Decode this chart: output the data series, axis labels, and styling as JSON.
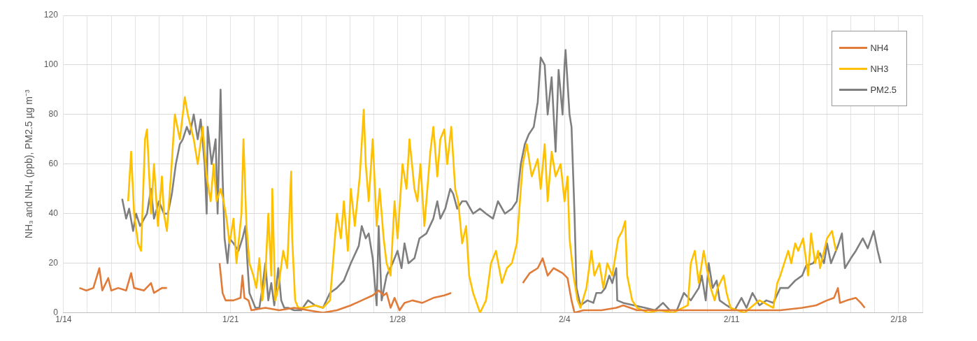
{
  "chart_data": {
    "type": "line",
    "ylabel": "NH₃ and NH₄ (ppb), PM2.5 µg m⁻³",
    "xlim": [
      "--01-14",
      "--02-19"
    ],
    "ylim": [
      0,
      120
    ],
    "xticks": [
      {
        "value": "--01-14",
        "label": "1/14"
      },
      {
        "value": "--01-15",
        "label": null
      },
      {
        "value": "--01-16",
        "label": null
      },
      {
        "value": "--01-17",
        "label": null
      },
      {
        "value": "--01-18",
        "label": null
      },
      {
        "value": "--01-19",
        "label": null
      },
      {
        "value": "--01-20",
        "label": null
      },
      {
        "value": "--01-21",
        "label": "1/21"
      },
      {
        "value": "--01-22",
        "label": null
      },
      {
        "value": "--01-23",
        "label": null
      },
      {
        "value": "--01-24",
        "label": null
      },
      {
        "value": "--01-25",
        "label": null
      },
      {
        "value": "--01-26",
        "label": null
      },
      {
        "value": "--01-27",
        "label": null
      },
      {
        "value": "--01-28",
        "label": "1/28"
      },
      {
        "value": "--01-29",
        "label": null
      },
      {
        "value": "--01-30",
        "label": null
      },
      {
        "value": "--01-31",
        "label": null
      },
      {
        "value": "--02-01",
        "label": null
      },
      {
        "value": "--02-02",
        "label": null
      },
      {
        "value": "--02-03",
        "label": null
      },
      {
        "value": "--02-04",
        "label": "2/4"
      },
      {
        "value": "--02-05",
        "label": null
      },
      {
        "value": "--02-06",
        "label": null
      },
      {
        "value": "--02-07",
        "label": null
      },
      {
        "value": "--02-08",
        "label": null
      },
      {
        "value": "--02-09",
        "label": null
      },
      {
        "value": "--02-10",
        "label": null
      },
      {
        "value": "--02-11",
        "label": "2/11"
      },
      {
        "value": "--02-12",
        "label": null
      },
      {
        "value": "--02-13",
        "label": null
      },
      {
        "value": "--02-14",
        "label": null
      },
      {
        "value": "--02-15",
        "label": null
      },
      {
        "value": "--02-16",
        "label": null
      },
      {
        "value": "--02-17",
        "label": null
      },
      {
        "value": "--02-18",
        "label": "2/18"
      },
      {
        "value": "--02-19",
        "label": null
      }
    ],
    "yticks": [
      0,
      20,
      40,
      60,
      80,
      100,
      120
    ],
    "grid": true,
    "legend": "top right",
    "series": [
      {
        "name": "NH4",
        "color": "#e07b39",
        "x": [
          "--01-14T16:00",
          "--01-14T23:00",
          "--01-15T06:00",
          "--01-15T12:00",
          "--01-15T15:00",
          "--01-15T21:00",
          "--01-16T00:00",
          "--01-16T07:00",
          "--01-16T15:00",
          "--01-16T20:00",
          "--01-16T23:00",
          "--01-17T09:00",
          "--01-17T16:00",
          "--01-17T19:00",
          "--01-18T03:00",
          "--01-18T08:00",
          "--01-19T10:00",
          "--01-20T13:00",
          "--01-20T16:00",
          "--01-20T19:00",
          "--01-21T03:00",
          "--01-21T10:00",
          "--01-21T12:00",
          "--01-21T14:00",
          "--01-21T18:00",
          "--01-21T21:00",
          "--01-22T11:00",
          "--01-23T01:00",
          "--01-23T16:00",
          "--01-24T06:00",
          "--01-24T21:00",
          "--01-25T11:00",
          "--01-26T01:00",
          "--01-26T12:00",
          "--01-26T23:00",
          "--01-27T05:00",
          "--01-27T10:00",
          "--01-27T13:00",
          "--01-27T17:00",
          "--01-27T21:00",
          "--01-28T02:00",
          "--01-28T07:00",
          "--01-28T15:00",
          "--01-29T01:00",
          "--01-29T12:00",
          "--01-29T23:00",
          "--01-30T06:00",
          "--01-31T19:00",
          "--02-02T06:00",
          "--02-02T13:00",
          "--02-02T21:00",
          "--02-03T02:00",
          "--02-03T07:00",
          "--02-03T13:00",
          "--02-03T22:00",
          "--02-04T03:00",
          "--02-04T07:00",
          "--02-04T10:00",
          "--02-04T19:00",
          "--02-05T13:00",
          "--02-06T04:00",
          "--02-06T11:00",
          "--02-06T18:00",
          "--02-07T01:00",
          "--02-08T06:00",
          "--02-09T11:00",
          "--02-10T16:00",
          "--02-11T21:00",
          "--02-13T01:00",
          "--02-13T23:00",
          "--02-14T13:00",
          "--02-15T00:00",
          "--02-15T07:00",
          "--02-15T11:00",
          "--02-15T13:00",
          "--02-15T20:00",
          "--02-16T05:00",
          "--02-16T10:00",
          "--02-16T14:00"
        ],
        "values": [
          10,
          9,
          10,
          18,
          9,
          14,
          9,
          10,
          9,
          16,
          10,
          9,
          12,
          8,
          10,
          10,
          null,
          20,
          8,
          5,
          5,
          6,
          15,
          6,
          5,
          1,
          2,
          1,
          2,
          1,
          0,
          1,
          3,
          5,
          7,
          9,
          7,
          8,
          2,
          6,
          1,
          4,
          5,
          4,
          6,
          7,
          8,
          null,
          12,
          16,
          18,
          22,
          15,
          18,
          16,
          14,
          5,
          0,
          1,
          1,
          2,
          3,
          2,
          1,
          1,
          1,
          1,
          1,
          1,
          2,
          3,
          5,
          6,
          10,
          4,
          5,
          6,
          4,
          2
        ]
      },
      {
        "name": "NH3",
        "color": "#ffc000",
        "x": [
          "--01-16T17:00",
          "--01-16T20:00",
          "--01-16T23:00",
          "--01-17T03:00",
          "--01-17T06:00",
          "--01-17T10:00",
          "--01-17T12:00",
          "--01-17T16:00",
          "--01-17T19:00",
          "--01-17T23:00",
          "--01-18T03:00",
          "--01-18T05:00",
          "--01-18T08:00",
          "--01-18T12:00",
          "--01-18T16:00",
          "--01-18T21:00",
          "--01-19T02:00",
          "--01-19T05:00",
          "--01-19T11:00",
          "--01-19T15:00",
          "--01-19T20:00",
          "--01-20T00:00",
          "--01-20T04:00",
          "--01-20T07:00",
          "--01-20T10:00",
          "--01-20T14:00",
          "--01-20T17:00",
          "--01-20T20:00",
          "--01-20T23:00",
          "--01-21T03:00",
          "--01-21T06:00",
          "--01-21T11:00",
          "--01-21T13:00",
          "--01-21T16:00",
          "--01-21T19:00",
          "--01-21T23:00",
          "--01-22T02:00",
          "--01-22T05:00",
          "--01-22T08:00",
          "--01-22T11:00",
          "--01-22T14:00",
          "--01-22T17:00",
          "--01-22T18:00",
          "--01-22T21:00",
          "--01-23T00:00",
          "--01-23T05:00",
          "--01-23T09:00",
          "--01-23T13:00",
          "--01-23T14:00",
          "--01-23T17:00",
          "--01-23T20:00",
          "--01-24T03:00",
          "--01-24T13:00",
          "--01-24T21:00",
          "--01-25T04:00",
          "--01-25T07:00",
          "--01-25T11:00",
          "--01-25T15:00",
          "--01-25T18:00",
          "--01-25T22:00",
          "--01-26T01:00",
          "--01-26T05:00",
          "--01-26T10:00",
          "--01-26T14:00",
          "--01-26T16:00",
          "--01-26T19:00",
          "--01-26T23:00",
          "--01-27T03:00",
          "--01-27T06:00",
          "--01-27T10:00",
          "--01-27T13:00",
          "--01-27T17:00",
          "--01-27T21:00",
          "--01-28T00:00",
          "--01-28T05:00",
          "--01-28T09:00",
          "--01-28T12:00",
          "--01-28T17:00",
          "--01-28T20:00",
          "--01-28T23:00",
          "--01-29T03:00",
          "--01-29T09:00",
          "--01-29T12:00",
          "--01-29T16:00",
          "--01-29T19:00",
          "--01-29T23:00",
          "--01-30T02:00",
          "--01-30T06:00",
          "--01-30T10:00",
          "--01-30T13:00",
          "--01-30T17:00",
          "--01-30T21:00",
          "--01-31T00:00",
          "--01-31T04:00",
          "--01-31T11:00",
          "--01-31T17:00",
          "--01-31T22:00",
          "--02-01T03:00",
          "--02-01T09:00",
          "--02-01T14:00",
          "--02-01T19:00",
          "--02-02T00:00",
          "--02-02T04:00",
          "--02-02T06:00",
          "--02-02T10:00",
          "--02-02T15:00",
          "--02-02T21:00",
          "--02-03T00:00",
          "--02-03T04:00",
          "--02-03T07:00",
          "--02-03T11:00",
          "--02-03T15:00",
          "--02-03T20:00",
          "--02-04T00:00",
          "--02-04T03:00",
          "--02-04T05:00",
          "--02-04T09:00",
          "--02-04T13:00",
          "--02-04T16:00",
          "--02-04T22:00",
          "--02-05T03:00",
          "--02-05T06:00",
          "--02-05T11:00",
          "--02-05T15:00",
          "--02-05T19:00",
          "--02-06T00:00",
          "--02-06T06:00",
          "--02-06T10:00",
          "--02-06T13:00",
          "--02-06T15:00",
          "--02-06T20:00",
          "--02-07T01:00",
          "--02-07T12:00",
          "--02-07T23:00",
          "--02-08T13:00",
          "--02-09T04:00",
          "--02-09T07:00",
          "--02-09T11:00",
          "--02-09T15:00",
          "--02-09T20:00",
          "--02-09T23:00",
          "--02-10T03:00",
          "--02-10T07:00",
          "--02-10T10:00",
          "--02-10T16:00",
          "--02-10T19:00",
          "--02-10T23:00",
          "--02-11T13:00",
          "--02-12T04:00",
          "--02-12T18:00",
          "--02-12T22:00",
          "--02-13T01:00",
          "--02-13T05:00",
          "--02-13T09:00",
          "--02-13T12:00",
          "--02-13T16:00",
          "--02-13T19:00",
          "--02-14T00:00",
          "--02-14T05:00",
          "--02-14T08:00",
          "--02-14T12:00",
          "--02-14T15:00",
          "--02-14T17:00",
          "--02-15T00:00",
          "--02-15T05:00",
          "--02-15T09:00"
        ],
        "values": [
          45,
          65,
          40,
          28,
          25,
          70,
          74,
          40,
          60,
          35,
          55,
          40,
          33,
          55,
          80,
          70,
          87,
          80,
          70,
          60,
          75,
          55,
          45,
          60,
          45,
          50,
          45,
          38,
          28,
          38,
          20,
          40,
          70,
          35,
          20,
          15,
          10,
          22,
          5,
          15,
          40,
          15,
          50,
          5,
          10,
          25,
          18,
          57,
          30,
          5,
          2,
          2,
          3,
          2,
          5,
          20,
          40,
          30,
          45,
          25,
          50,
          35,
          55,
          82,
          60,
          45,
          70,
          35,
          50,
          30,
          20,
          15,
          45,
          30,
          60,
          50,
          70,
          50,
          45,
          60,
          35,
          65,
          75,
          55,
          70,
          74,
          60,
          75,
          50,
          45,
          28,
          35,
          15,
          8,
          0,
          5,
          20,
          25,
          12,
          18,
          20,
          28,
          50,
          60,
          68,
          55,
          62,
          50,
          68,
          45,
          65,
          55,
          60,
          45,
          55,
          30,
          15,
          5,
          2,
          10,
          25,
          15,
          20,
          10,
          20,
          15,
          30,
          33,
          37,
          15,
          5,
          2,
          0,
          1,
          0,
          3,
          20,
          25,
          12,
          25,
          18,
          10,
          5,
          10,
          15,
          8,
          2,
          0,
          5,
          2,
          12,
          15,
          20,
          25,
          20,
          28,
          25,
          30,
          15,
          32,
          20,
          25,
          18,
          30,
          33,
          25
        ]
      },
      {
        "name": "PM2.5",
        "color": "#7f7f7f",
        "x": [
          "--01-16T11:00",
          "--01-16T15:00",
          "--01-16T18:00",
          "--01-16T22:00",
          "--01-17T01:00",
          "--01-17T05:00",
          "--01-17T12:00",
          "--01-17T16:00",
          "--01-17T19:00",
          "--01-18T00:00",
          "--01-18T05:00",
          "--01-18T09:00",
          "--01-18T13:00",
          "--01-18T17:00",
          "--01-18T21:00",
          "--01-19T00:00",
          "--01-19T04:00",
          "--01-19T07:00",
          "--01-19T11:00",
          "--01-19T15:00",
          "--01-19T18:00",
          "--01-19T22:00",
          "--01-20T00:00",
          "--01-20T01:00",
          "--01-20T05:00",
          "--01-20T09:00",
          "--01-20T11:00",
          "--01-20T14:00",
          "--01-20T16:00",
          "--01-20T18:00",
          "--01-20T21:00",
          "--01-20T23:00",
          "--01-21T03:00",
          "--01-21T08:00",
          "--01-21T12:00",
          "--01-21T15:00",
          "--01-21T17:00",
          "--01-21T19:00",
          "--01-21T22:00",
          "--01-22T01:00",
          "--01-22T05:00",
          "--01-22T08:00",
          "--01-22T11:00",
          "--01-22T14:00",
          "--01-22T17:00",
          "--01-22T20:00",
          "--01-23T00:00",
          "--01-23T03:00",
          "--01-23T06:00",
          "--01-23T10:00",
          "--01-23T16:00",
          "--01-23T23:00",
          "--01-24T06:00",
          "--01-24T13:00",
          "--01-24T21:00",
          "--01-25T04:00",
          "--01-25T11:00",
          "--01-25T18:00",
          "--01-26T01:00",
          "--01-26T09:00",
          "--01-26T12:00",
          "--01-26T16:00",
          "--01-26T19:00",
          "--01-26T23:00",
          "--01-27T03:00",
          "--01-27T05:00",
          "--01-27T08:00",
          "--01-27T13:00",
          "--01-27T19:00",
          "--01-28T00:00",
          "--01-28T04:00",
          "--01-28T07:00",
          "--01-28T11:00",
          "--01-28T17:00",
          "--01-28T22:00",
          "--01-29T05:00",
          "--01-29T12:00",
          "--01-29T16:00",
          "--01-29T19:00",
          "--01-30T00:00",
          "--01-30T05:00",
          "--01-30T08:00",
          "--01-30T12:00",
          "--01-30T17:00",
          "--01-30T21:00",
          "--01-31T04:00",
          "--01-31T11:00",
          "--01-31T17:00",
          "--02-01T00:00",
          "--02-01T05:00",
          "--02-01T12:00",
          "--02-01T19:00",
          "--02-02T00:00",
          "--02-02T04:00",
          "--02-02T08:00",
          "--02-02T12:00",
          "--02-02T17:00",
          "--02-02T21:00",
          "--02-03T00:00",
          "--02-03T04:00",
          "--02-03T07:00",
          "--02-03T11:00",
          "--02-03T15:00",
          "--02-03T18:00",
          "--02-03T22:00",
          "--02-04T00:00",
          "--02-04T01:00",
          "--02-04T05:00",
          "--02-04T07:00",
          "--02-04T10:00",
          "--02-04T12:00",
          "--02-04T16:00",
          "--02-04T23:00",
          "--02-05T05:00",
          "--02-05T08:00",
          "--02-05T13:00",
          "--02-05T17:00",
          "--02-05T21:00",
          "--02-06T00:00",
          "--02-06T04:00",
          "--02-06T05:00",
          "--02-06T11:00",
          "--02-06T22:00",
          "--02-07T09:00",
          "--02-07T19:00",
          "--02-08T03:00",
          "--02-08T10:00",
          "--02-08T17:00",
          "--02-09T00:00",
          "--02-09T07:00",
          "--02-09T15:00",
          "--02-09T18:00",
          "--02-09T22:00",
          "--02-10T01:00",
          "--02-10T05:00",
          "--02-10T09:00",
          "--02-10T12:00",
          "--02-10T19:00",
          "--02-11T03:00",
          "--02-11T10:00",
          "--02-11T15:00",
          "--02-11T21:00",
          "--02-12T04:00",
          "--02-12T11:00",
          "--02-12T18:00",
          "--02-13T01:00",
          "--02-13T09:00",
          "--02-13T16:00",
          "--02-13T23:00",
          "--02-14T03:00",
          "--02-14T10:00",
          "--02-14T17:00",
          "--02-14T21:00",
          "--02-15T00:00",
          "--02-15T04:00",
          "--02-15T11:00",
          "--02-15T15:00",
          "--02-15T18:00",
          "--02-16T00:00",
          "--02-16T05:00",
          "--02-16T12:00",
          "--02-16T17:00",
          "--02-16T23:00",
          "--02-17T03:00",
          "--02-17T06:00"
        ],
        "values": [
          46,
          38,
          42,
          33,
          40,
          35,
          40,
          50,
          38,
          45,
          40,
          40,
          48,
          60,
          68,
          70,
          75,
          72,
          80,
          70,
          78,
          60,
          40,
          75,
          60,
          70,
          40,
          90,
          55,
          30,
          20,
          30,
          28,
          25,
          30,
          35,
          20,
          8,
          5,
          2,
          2,
          10,
          20,
          5,
          12,
          3,
          18,
          5,
          2,
          2,
          1,
          1,
          5,
          3,
          2,
          8,
          10,
          13,
          20,
          27,
          35,
          30,
          32,
          22,
          3,
          35,
          5,
          15,
          20,
          25,
          18,
          28,
          20,
          22,
          30,
          32,
          38,
          45,
          38,
          42,
          50,
          48,
          42,
          45,
          45,
          40,
          42,
          40,
          38,
          45,
          40,
          42,
          45,
          60,
          68,
          72,
          75,
          85,
          103,
          100,
          80,
          95,
          65,
          98,
          80,
          100,
          106,
          80,
          75,
          40,
          10,
          3,
          5,
          4,
          8,
          8,
          10,
          15,
          12,
          18,
          5,
          4,
          3,
          2,
          1,
          4,
          1,
          1,
          8,
          5,
          10,
          15,
          5,
          20,
          10,
          13,
          5,
          3,
          1,
          6,
          2,
          8,
          3,
          5,
          4,
          10,
          10,
          13,
          15,
          19,
          20,
          24,
          20,
          28,
          20,
          27,
          32,
          18,
          22,
          25,
          30,
          26,
          33,
          25,
          20
        ]
      }
    ]
  }
}
